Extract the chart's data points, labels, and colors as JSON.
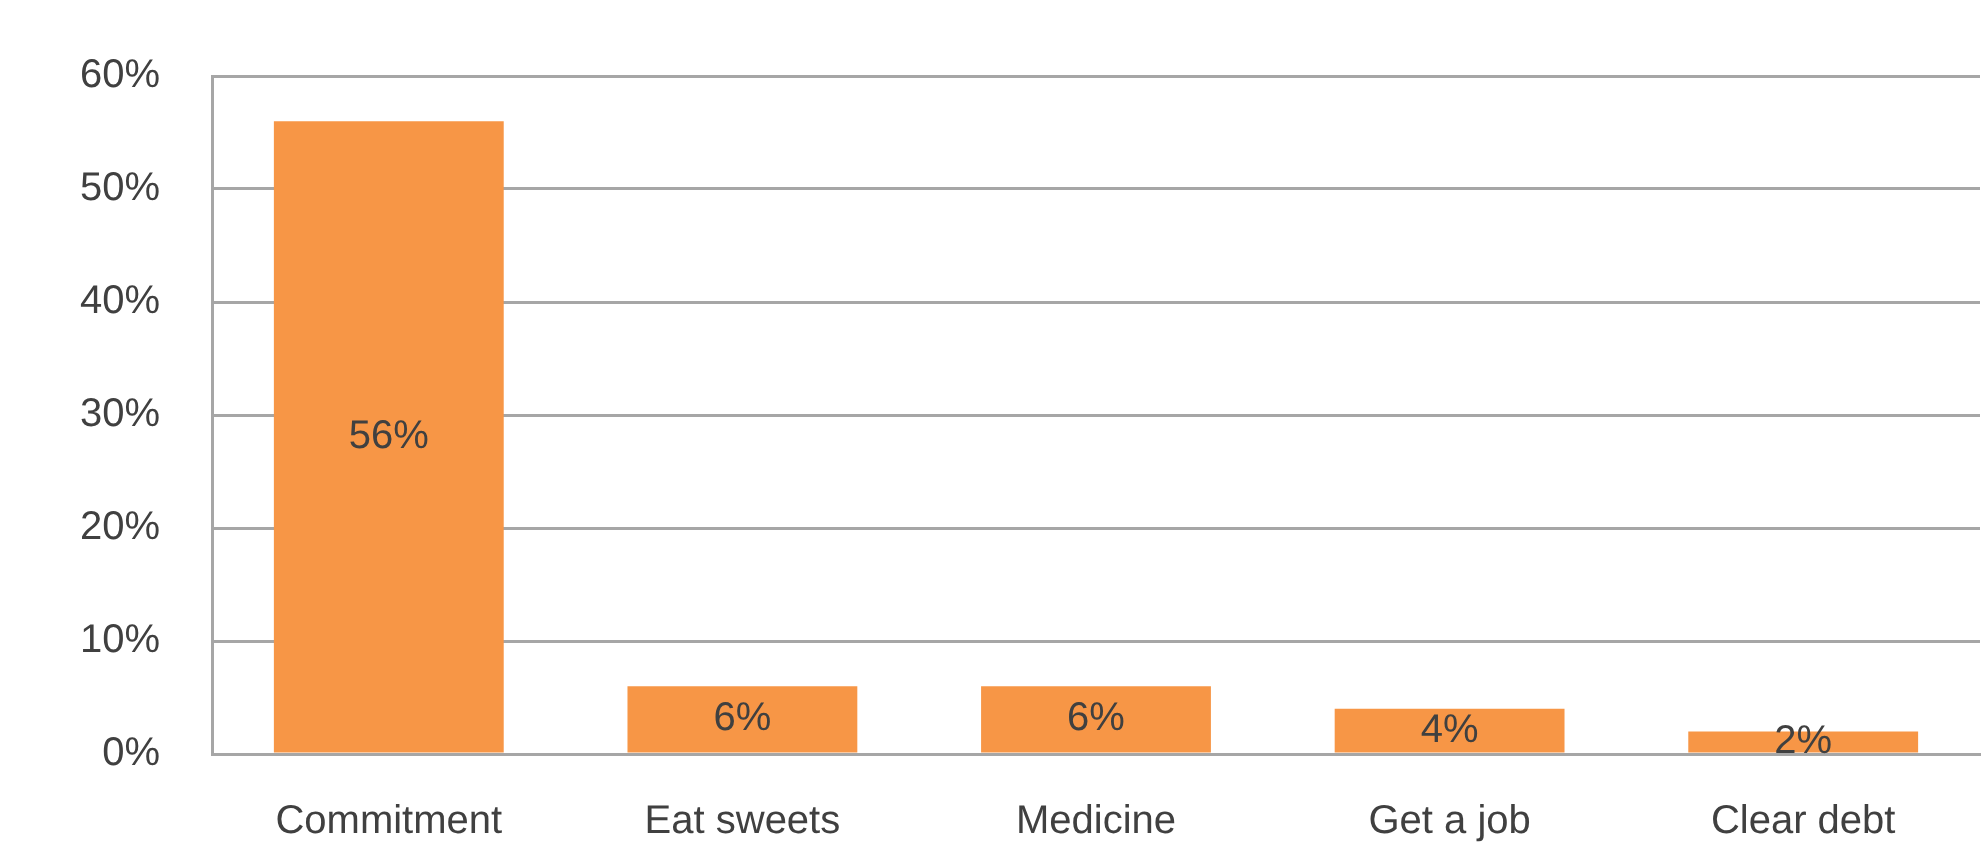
{
  "chart_data": {
    "type": "bar",
    "categories": [
      "Commitment",
      "Eat sweets",
      "Medicine",
      "Get a job",
      "Clear debt"
    ],
    "values": [
      56,
      6,
      6,
      4,
      2
    ],
    "color": "#f79646",
    "value_labels": [
      "56%",
      "6%",
      "6%",
      "4%",
      "2%"
    ],
    "ylim": [
      0,
      60
    ],
    "yticks": [
      {
        "value": 0,
        "label": "0%"
      },
      {
        "value": 10,
        "label": "10%"
      },
      {
        "value": 20,
        "label": "20%"
      },
      {
        "value": 30,
        "label": "30%"
      },
      {
        "value": 40,
        "label": "40%"
      },
      {
        "value": 50,
        "label": "50%"
      },
      {
        "value": 60,
        "label": "60%"
      }
    ],
    "grid": "y"
  }
}
